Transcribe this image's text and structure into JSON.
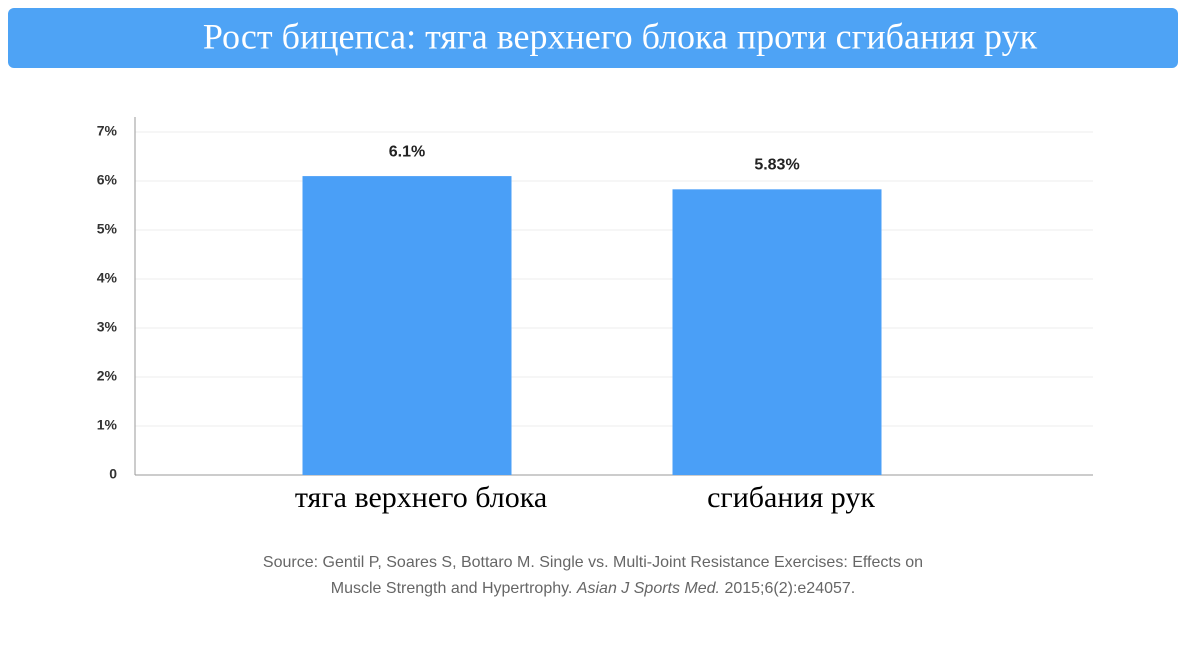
{
  "chart_data": {
    "type": "bar",
    "title": "Рост бицепса: тяга верхнего блока проти сгибания рук",
    "categories": [
      "тяга верхнего блока",
      "сгибания рук"
    ],
    "values": [
      6.1,
      5.83
    ],
    "value_labels": [
      "6.1%",
      "5.83%"
    ],
    "color": "#4a9ff7",
    "ylim": [
      0,
      7
    ],
    "yticks": [
      0,
      {
        "value": 1,
        "label": "1%"
      },
      {
        "value": 2,
        "label": "2%"
      },
      {
        "value": 3,
        "label": "3%"
      },
      {
        "value": 4,
        "label": "4%"
      },
      {
        "value": 5,
        "label": "5%"
      },
      {
        "value": 6,
        "label": "6%"
      },
      {
        "value": 7,
        "label": "7%"
      }
    ],
    "grid": true,
    "source": [
      "Source: Gentil P, Soares S, Bottaro M. Single vs. Multi-Joint Resistance Exercises: Effects on",
      "Muscle Strength and Hypertrophy.",
      "Asian J Sports Med.",
      "2015;6(2):e24057."
    ]
  }
}
